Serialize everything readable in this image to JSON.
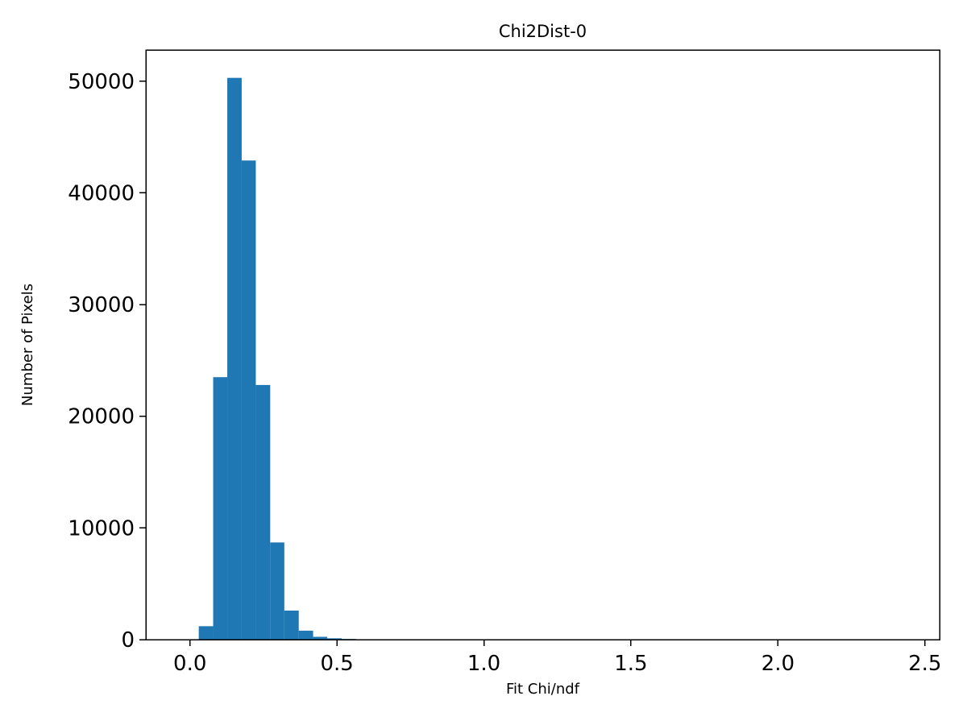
{
  "figure": {
    "background": "#ffffff"
  },
  "chart_data": {
    "type": "bar",
    "subtype": "histogram",
    "title": "Chi2Dist-0",
    "xlabel": "Fit Chi/ndf",
    "ylabel": "Number of Pixels",
    "bar_color": "#1f77b4",
    "grid": false,
    "legend": null,
    "xlim": [
      -0.15,
      2.55
    ],
    "ylim": [
      0,
      52800
    ],
    "xticks": [
      {
        "v": 0.0,
        "label": "0.0"
      },
      {
        "v": 0.5,
        "label": "0.5"
      },
      {
        "v": 1.0,
        "label": "1.0"
      },
      {
        "v": 1.5,
        "label": "1.5"
      },
      {
        "v": 2.0,
        "label": "2.0"
      },
      {
        "v": 2.5,
        "label": "2.5"
      }
    ],
    "yticks": [
      {
        "v": 0,
        "label": "0"
      },
      {
        "v": 10000,
        "label": "10000"
      },
      {
        "v": 20000,
        "label": "20000"
      },
      {
        "v": 30000,
        "label": "30000"
      },
      {
        "v": 40000,
        "label": "40000"
      },
      {
        "v": 50000,
        "label": "50000"
      }
    ],
    "bin_edges": [
      0.03,
      0.079,
      0.127,
      0.176,
      0.224,
      0.273,
      0.321,
      0.37,
      0.419,
      0.467,
      0.516,
      0.564
    ],
    "counts": [
      1200,
      23500,
      50300,
      42900,
      22800,
      8700,
      2600,
      800,
      250,
      120,
      60
    ]
  }
}
